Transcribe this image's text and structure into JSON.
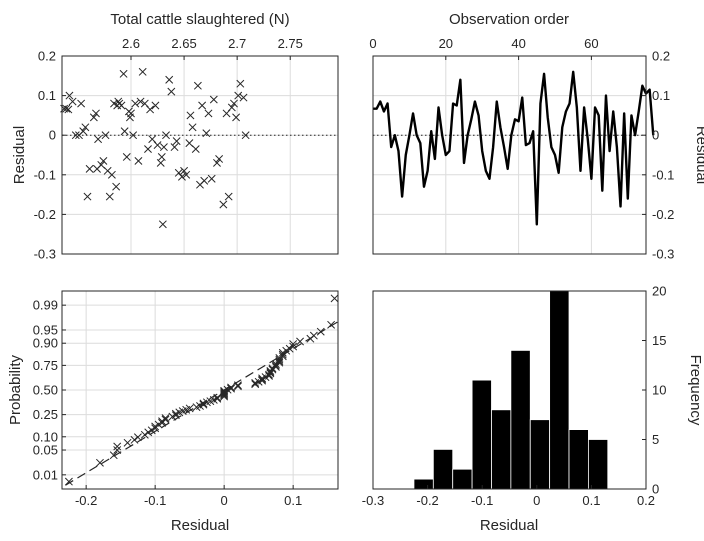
{
  "chart_data": [
    {
      "type": "scatter",
      "xlabel": "Total cattle slaughtered (N)",
      "ylabel": "Residual",
      "xlim": [
        2.535,
        2.795
      ],
      "ylim": [
        -0.3,
        0.2
      ],
      "xticks": [
        "2.6",
        "2.65",
        "2.7",
        "2.75"
      ],
      "yticks": [
        "-0.3",
        "-0.2",
        "-0.1",
        "0",
        "0.1",
        "0.2"
      ],
      "reference_line": 0,
      "marker": "x",
      "points": [
        [
          2.537,
          0.067
        ],
        [
          2.539,
          0.067
        ],
        [
          2.541,
          0.065
        ],
        [
          2.542,
          0.1
        ],
        [
          2.545,
          0.085
        ],
        [
          2.548,
          0.0
        ],
        [
          2.551,
          0.0
        ],
        [
          2.553,
          0.08
        ],
        [
          2.555,
          0.01
        ],
        [
          2.557,
          0.02
        ],
        [
          2.559,
          -0.155
        ],
        [
          2.561,
          -0.085
        ],
        [
          2.565,
          0.045
        ],
        [
          2.567,
          0.055
        ],
        [
          2.568,
          -0.085
        ],
        [
          2.569,
          -0.01
        ],
        [
          2.572,
          -0.075
        ],
        [
          2.574,
          -0.065
        ],
        [
          2.576,
          0.0
        ],
        [
          2.578,
          -0.09
        ],
        [
          2.58,
          -0.155
        ],
        [
          2.582,
          -0.1
        ],
        [
          2.584,
          0.08
        ],
        [
          2.586,
          -0.13
        ],
        [
          2.587,
          0.075
        ],
        [
          2.588,
          0.085
        ],
        [
          2.589,
          0.08
        ],
        [
          2.591,
          0.075
        ],
        [
          2.593,
          0.155
        ],
        [
          2.594,
          0.01
        ],
        [
          2.596,
          -0.055
        ],
        [
          2.598,
          0.06
        ],
        [
          2.599,
          0.045
        ],
        [
          2.6,
          0.055
        ],
        [
          2.602,
          0.0
        ],
        [
          2.604,
          0.08
        ],
        [
          2.607,
          -0.065
        ],
        [
          2.609,
          0.085
        ],
        [
          2.611,
          0.16
        ],
        [
          2.613,
          0.08
        ],
        [
          2.616,
          -0.035
        ],
        [
          2.618,
          0.065
        ],
        [
          2.62,
          -0.01
        ],
        [
          2.623,
          0.075
        ],
        [
          2.625,
          -0.025
        ],
        [
          2.628,
          -0.07
        ],
        [
          2.629,
          -0.055
        ],
        [
          2.63,
          -0.225
        ],
        [
          2.631,
          -0.03
        ],
        [
          2.633,
          0.0
        ],
        [
          2.636,
          0.14
        ],
        [
          2.638,
          0.11
        ],
        [
          2.641,
          -0.03
        ],
        [
          2.643,
          -0.015
        ],
        [
          2.645,
          -0.095
        ],
        [
          2.648,
          -0.105
        ],
        [
          2.65,
          -0.09
        ],
        [
          2.652,
          -0.1
        ],
        [
          2.655,
          -0.02
        ],
        [
          2.656,
          0.05
        ],
        [
          2.658,
          0.02
        ],
        [
          2.661,
          -0.035
        ],
        [
          2.663,
          0.125
        ],
        [
          2.665,
          -0.125
        ],
        [
          2.667,
          0.075
        ],
        [
          2.669,
          -0.115
        ],
        [
          2.671,
          0.005
        ],
        [
          2.673,
          0.055
        ],
        [
          2.676,
          -0.11
        ],
        [
          2.678,
          0.09
        ],
        [
          2.681,
          -0.07
        ],
        [
          2.683,
          -0.06
        ],
        [
          2.687,
          -0.175
        ],
        [
          2.69,
          0.055
        ],
        [
          2.692,
          -0.155
        ],
        [
          2.695,
          0.07
        ],
        [
          2.697,
          0.08
        ],
        [
          2.699,
          0.045
        ],
        [
          2.701,
          0.1
        ],
        [
          2.703,
          0.13
        ],
        [
          2.706,
          0.095
        ],
        [
          2.708,
          0.0
        ]
      ]
    },
    {
      "type": "line",
      "xlabel": "Observation order",
      "ylabel": "Residual",
      "xlim": [
        0,
        75
      ],
      "ylim": [
        -0.3,
        0.2
      ],
      "xticks": [
        "0",
        "20",
        "40",
        "60"
      ],
      "yticks": [
        "-0.3",
        "-0.2",
        "-0.1",
        "0",
        "0.1",
        "0.2"
      ],
      "reference_line": 0,
      "y": [
        0.067,
        0.067,
        0.085,
        0.06,
        0.08,
        -0.03,
        0.0,
        -0.04,
        -0.155,
        -0.05,
        0.0,
        0.055,
        0.0,
        -0.02,
        -0.13,
        -0.09,
        0.01,
        -0.06,
        0.07,
        0.0,
        -0.05,
        -0.04,
        0.08,
        0.075,
        0.14,
        -0.07,
        0.0,
        0.04,
        0.085,
        0.05,
        -0.04,
        -0.09,
        -0.11,
        -0.03,
        0.085,
        0.02,
        -0.03,
        -0.085,
        0.0,
        0.04,
        0.035,
        0.095,
        -0.025,
        -0.02,
        0.01,
        -0.225,
        0.08,
        0.155,
        0.045,
        -0.03,
        -0.05,
        -0.095,
        0.02,
        0.06,
        0.08,
        0.16,
        0.07,
        -0.09,
        0.07,
        -0.01,
        -0.11,
        0.07,
        0.05,
        -0.14,
        0.1,
        -0.04,
        0.06,
        -0.03,
        -0.18,
        0.055,
        -0.16,
        0.05,
        0.0,
        0.06,
        0.125,
        0.105,
        0.115,
        0.0
      ]
    },
    {
      "type": "scatter",
      "xlabel": "Residual",
      "ylabel": "Probability",
      "xlim": [
        -0.235,
        0.165
      ],
      "yscale": "normal-probability",
      "xticks": [
        "-0.2",
        "-0.1",
        "0",
        "0.1"
      ],
      "yticks": [
        "0.01",
        "0.05",
        "0.10",
        "0.25",
        "0.50",
        "0.75",
        "0.90",
        "0.95",
        "0.99"
      ],
      "marker": "x",
      "reference_line": "dashed fitted normal",
      "points": [
        [
          -0.225,
          0.006
        ],
        [
          -0.18,
          0.023
        ],
        [
          -0.16,
          0.037
        ],
        [
          -0.155,
          0.05
        ],
        [
          -0.155,
          0.061
        ],
        [
          -0.14,
          0.074
        ],
        [
          -0.13,
          0.086
        ],
        [
          -0.125,
          0.098
        ],
        [
          -0.115,
          0.11
        ],
        [
          -0.11,
          0.123
        ],
        [
          -0.105,
          0.135
        ],
        [
          -0.1,
          0.147
        ],
        [
          -0.1,
          0.159
        ],
        [
          -0.095,
          0.172
        ],
        [
          -0.09,
          0.184
        ],
        [
          -0.09,
          0.196
        ],
        [
          -0.085,
          0.209
        ],
        [
          -0.085,
          0.221
        ],
        [
          -0.075,
          0.233
        ],
        [
          -0.07,
          0.245
        ],
        [
          -0.07,
          0.258
        ],
        [
          -0.065,
          0.27
        ],
        [
          -0.06,
          0.282
        ],
        [
          -0.055,
          0.294
        ],
        [
          -0.05,
          0.307
        ],
        [
          -0.04,
          0.319
        ],
        [
          -0.035,
          0.331
        ],
        [
          -0.03,
          0.344
        ],
        [
          -0.03,
          0.356
        ],
        [
          -0.025,
          0.368
        ],
        [
          -0.02,
          0.38
        ],
        [
          -0.015,
          0.393
        ],
        [
          -0.01,
          0.405
        ],
        [
          -0.01,
          0.417
        ],
        [
          0.0,
          0.429
        ],
        [
          0.0,
          0.442
        ],
        [
          0.0,
          0.454
        ],
        [
          0.0,
          0.466
        ],
        [
          0.0,
          0.479
        ],
        [
          0.0,
          0.491
        ],
        [
          0.005,
          0.503
        ],
        [
          0.01,
          0.515
        ],
        [
          0.01,
          0.528
        ],
        [
          0.02,
          0.54
        ],
        [
          0.02,
          0.552
        ],
        [
          0.045,
          0.564
        ],
        [
          0.045,
          0.577
        ],
        [
          0.05,
          0.589
        ],
        [
          0.055,
          0.601
        ],
        [
          0.055,
          0.613
        ],
        [
          0.055,
          0.626
        ],
        [
          0.06,
          0.638
        ],
        [
          0.065,
          0.65
        ],
        [
          0.065,
          0.663
        ],
        [
          0.067,
          0.675
        ],
        [
          0.067,
          0.687
        ],
        [
          0.067,
          0.699
        ],
        [
          0.07,
          0.712
        ],
        [
          0.07,
          0.724
        ],
        [
          0.075,
          0.736
        ],
        [
          0.075,
          0.748
        ],
        [
          0.075,
          0.761
        ],
        [
          0.08,
          0.773
        ],
        [
          0.08,
          0.785
        ],
        [
          0.08,
          0.797
        ],
        [
          0.08,
          0.81
        ],
        [
          0.085,
          0.822
        ],
        [
          0.085,
          0.834
        ],
        [
          0.085,
          0.846
        ],
        [
          0.09,
          0.859
        ],
        [
          0.095,
          0.871
        ],
        [
          0.1,
          0.883
        ],
        [
          0.1,
          0.896
        ],
        [
          0.11,
          0.908
        ],
        [
          0.125,
          0.92
        ],
        [
          0.13,
          0.932
        ],
        [
          0.14,
          0.945
        ],
        [
          0.155,
          0.963
        ],
        [
          0.16,
          0.994
        ]
      ]
    },
    {
      "type": "bar",
      "subtype": "histogram",
      "xlabel": "Residual",
      "ylabel": "Frequency",
      "xlim": [
        -0.3,
        0.2
      ],
      "ylim": [
        0,
        20
      ],
      "xticks": [
        "-0.3",
        "-0.2",
        "-0.1",
        "0",
        "0.1",
        "0.2"
      ],
      "yticks": [
        "0",
        "5",
        "10",
        "15",
        "20"
      ],
      "bin_edges": [
        -0.225,
        -0.1895,
        -0.154,
        -0.1185,
        -0.083,
        -0.0475,
        -0.012,
        0.0235,
        0.059,
        0.0945,
        0.13,
        0.1655
      ],
      "values": [
        1,
        4,
        2,
        11,
        8,
        14,
        7,
        20,
        6,
        5,
        0
      ],
      "color": "#000000"
    }
  ]
}
